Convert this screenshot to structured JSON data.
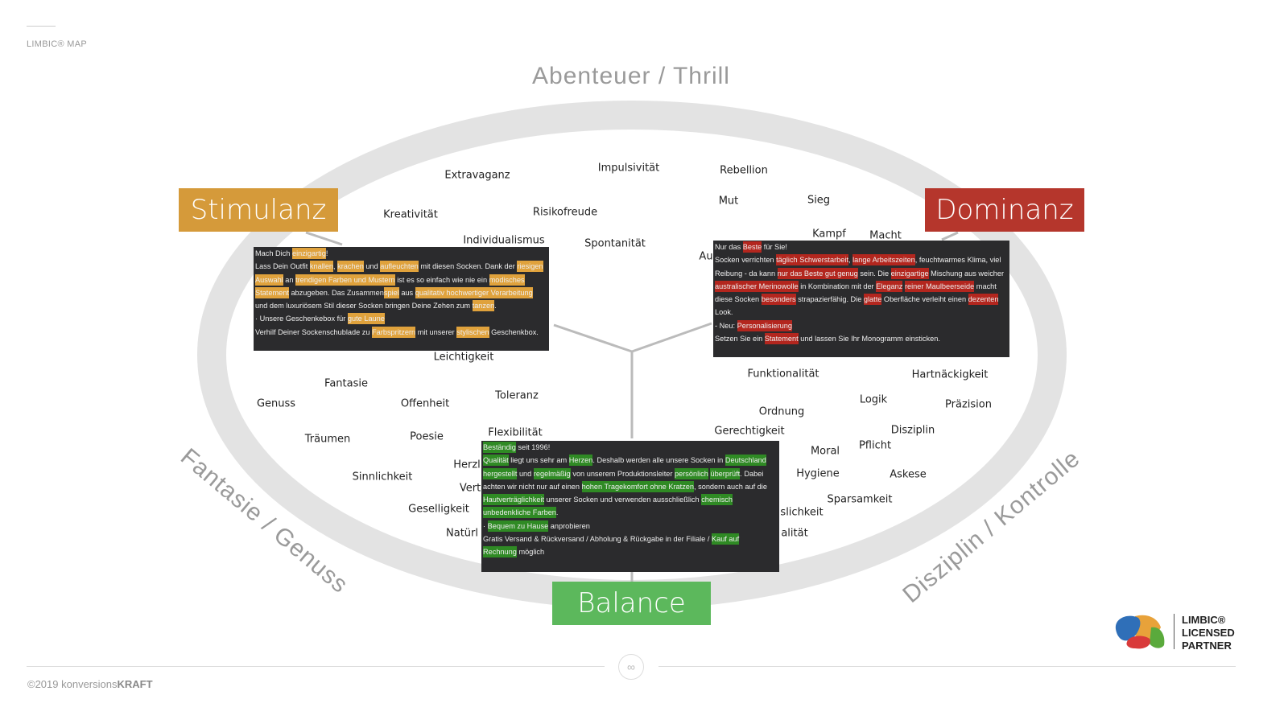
{
  "header": {
    "label": "LIMBIC® MAP"
  },
  "colors": {
    "stimulanz": "#d59a3a",
    "dominanz": "#b5362c",
    "balance": "#5cb85c",
    "ring": "#e2e2e2",
    "box_bg": "#2b2b2d"
  },
  "axes": {
    "top": "Abenteuer / Thrill",
    "left": "Fantasie / Genuss",
    "right": "Disziplin / Kontrolle"
  },
  "headings": {
    "stimulanz": "Stimulanz",
    "dominanz": "Dominanz",
    "balance": "Balance"
  },
  "words": [
    "Extravaganz",
    "Impulsivität",
    "Rebellion",
    "Kreativität",
    "Risikofreude",
    "Mut",
    "Sieg",
    "Individualismus",
    "Spontanität",
    "Kampf",
    "Macht",
    "Au",
    "Leichtigkeit",
    "Fantasie",
    "Genuss",
    "Offenheit",
    "Toleranz",
    "Träumen",
    "Poesie",
    "Flexibilität",
    "Sinnlichkeit",
    "Herzl",
    "Vert",
    "Geselligkeit",
    "Natürl",
    "Funktionalität",
    "Hartnäckigkeit",
    "Logik",
    "Präzision",
    "Ordnung",
    "Gerechtigkeit",
    "Disziplin",
    "Moral",
    "Pflicht",
    "Hygiene",
    "Askese",
    "Sparsamkeit",
    "slichkeit",
    "alität"
  ],
  "boxes": {
    "stimulanz": {
      "highlight": "#e0a23c",
      "lines": [
        [
          {
            "t": "Mach Dich "
          },
          {
            "t": "einzigartig",
            "h": 1
          },
          {
            "t": "!"
          }
        ],
        [
          {
            "t": "Lass Dein Outfit "
          },
          {
            "t": "knallen",
            "h": 1
          },
          {
            "t": ", "
          },
          {
            "t": "krachen",
            "h": 1
          },
          {
            "t": " und "
          },
          {
            "t": "aufleuchten",
            "h": 1
          },
          {
            "t": " mit diesen Socken. Dank der "
          },
          {
            "t": "riesigen",
            "h": 1
          }
        ],
        [
          {
            "t": "Auswahl",
            "h": 1
          },
          {
            "t": " an "
          },
          {
            "t": "trendigen Farben und Mustern",
            "h": 1
          },
          {
            "t": " ist es so einfach wie nie ein "
          },
          {
            "t": "modisches",
            "h": 1
          }
        ],
        [
          {
            "t": "Statement",
            "h": 1
          },
          {
            "t": " abzugeben. Das Zusammen"
          },
          {
            "t": "spiel",
            "h": 1
          },
          {
            "t": " aus "
          },
          {
            "t": "qualitativ hochwertiger Verarbeitung",
            "h": 1
          }
        ],
        [
          {
            "t": "und dem luxuriösem Stil dieser Socken bringen Deine Zehen zum "
          },
          {
            "t": "tanzen",
            "h": 1
          },
          {
            "t": "."
          }
        ],
        [
          {
            "t": " "
          }
        ],
        [
          {
            "t": "·   Unsere Geschenkebox für "
          },
          {
            "t": "gute Laune",
            "h": 1
          }
        ],
        [
          {
            "t": "Verhilf Deiner Sockenschublade zu "
          },
          {
            "t": "Farbspritzern",
            "h": 1
          },
          {
            "t": " mit unserer "
          },
          {
            "t": "stylischen",
            "h": 1
          },
          {
            "t": " Geschenkbox."
          }
        ]
      ]
    },
    "dominanz": {
      "highlight": "#b3261e",
      "lines": [
        [
          {
            "t": "Nur das "
          },
          {
            "t": "Beste",
            "h": 1
          },
          {
            "t": " für Sie!"
          }
        ],
        [
          {
            "t": "Socken verrichten "
          },
          {
            "t": "täglich Schwerstarbeit",
            "h": 1
          },
          {
            "t": ", "
          },
          {
            "t": "lange Arbeitszeiten",
            "h": 1
          },
          {
            "t": ", feuchtwarmes Klima, viel"
          }
        ],
        [
          {
            "t": "Reibung - da kann "
          },
          {
            "t": "nur das Beste gut genug",
            "h": 1
          },
          {
            "t": " sein. Die "
          },
          {
            "t": "einzigartige",
            "h": 1
          },
          {
            "t": " Mischung aus weicher"
          }
        ],
        [
          {
            "t": "australischer Merinowolle",
            "h": 1
          },
          {
            "t": " in Kombination mit der "
          },
          {
            "t": "Eleganz",
            "h": 1
          },
          {
            "t": " "
          },
          {
            "t": "reiner Maulbeerseide",
            "h": 1
          },
          {
            "t": " macht"
          }
        ],
        [
          {
            "t": "diese Socken "
          },
          {
            "t": "besonders",
            "h": 1
          },
          {
            "t": " strapazierfähig. Die "
          },
          {
            "t": "glatte",
            "h": 1
          },
          {
            "t": " Oberfläche verleiht einen "
          },
          {
            "t": "dezenten",
            "h": 1
          }
        ],
        [
          {
            "t": "Look."
          }
        ],
        [
          {
            "t": " "
          }
        ],
        [
          {
            "t": "-   Neu: "
          },
          {
            "t": "Personalisierung",
            "h": 1
          }
        ],
        [
          {
            "t": "Setzen Sie ein "
          },
          {
            "t": "Statement",
            "h": 1
          },
          {
            "t": " und lassen Sie Ihr Monogramm einsticken."
          }
        ]
      ]
    },
    "balance": {
      "highlight": "#2f8a24",
      "lines": [
        [
          {
            "t": "Beständig",
            "h": 1
          },
          {
            "t": " seit 1996!"
          }
        ],
        [
          {
            "t": "Qualität",
            "h": 1
          },
          {
            "t": " liegt uns sehr am "
          },
          {
            "t": "Herzen",
            "h": 1
          },
          {
            "t": ". Deshalb werden alle unsere Socken in "
          },
          {
            "t": "Deutschland",
            "h": 1
          }
        ],
        [
          {
            "t": "hergestellt",
            "h": 1
          },
          {
            "t": " und "
          },
          {
            "t": "regelmäßig",
            "h": 1
          },
          {
            "t": " von unserem Produktionsleiter "
          },
          {
            "t": "persönlich",
            "h": 1
          },
          {
            "t": " "
          },
          {
            "t": "überprüft",
            "h": 1
          },
          {
            "t": ". Dabei"
          }
        ],
        [
          {
            "t": "achten wir nicht nur auf einen "
          },
          {
            "t": "hohen Tragekomfort ohne Kratzen",
            "h": 1
          },
          {
            "t": ", sondern auch auf die"
          }
        ],
        [
          {
            "t": "Hautverträglichkeit",
            "h": 1
          },
          {
            "t": " unserer Socken und verwenden ausschließlich "
          },
          {
            "t": "chemisch",
            "h": 1
          }
        ],
        [
          {
            "t": "unbedenkliche Farben",
            "h": 1
          },
          {
            "t": "."
          }
        ],
        [
          {
            "t": " "
          }
        ],
        [
          {
            "t": "·   "
          },
          {
            "t": "Bequem zu Hause",
            "h": 1
          },
          {
            "t": " anprobieren"
          }
        ],
        [
          {
            "t": "Gratis Versand & Rückversand / Abholung & Rückgabe in der Filiale / "
          },
          {
            "t": "Kauf auf",
            "h": 1
          }
        ],
        [
          {
            "t": "Rechnung",
            "h": 1
          },
          {
            "t": " möglich"
          }
        ]
      ]
    }
  },
  "footer": {
    "copyright": "©2019  konversions",
    "brand": "KRAFT",
    "icon": "link-icon"
  },
  "logo": {
    "line1": "LIMBIC®",
    "line2": "LICENSED",
    "line3": "PARTNER"
  }
}
